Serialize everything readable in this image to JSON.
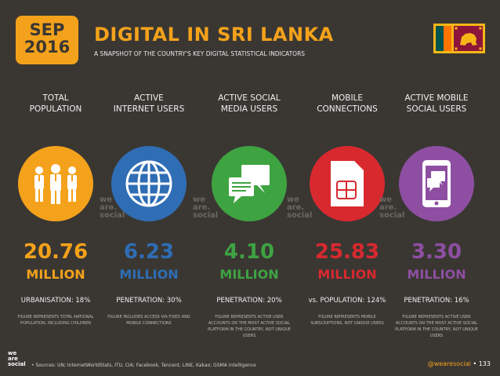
{
  "header": {
    "month": "SEP",
    "year": "2016",
    "title": "DIGITAL IN SRI LANKA",
    "subtitle": "A SNAPSHOT OF THE COUNTRY'S KEY DIGITAL STATISTICAL INDICATORS"
  },
  "watermark": {
    "line1": "we",
    "line2": "are.",
    "line3": "social"
  },
  "columns": [
    {
      "label1": "TOTAL",
      "label2": "POPULATION",
      "value": "20.76",
      "unit": "MILLION",
      "stat": "URBANISATION: 18%",
      "note": "FIGURE REPRESENTS TOTAL NATIONAL POPULATION, INCLUDING CHILDREN",
      "icon": "people-icon",
      "color": "#f4a21b"
    },
    {
      "label1": "ACTIVE",
      "label2": "INTERNET USERS",
      "value": "6.23",
      "unit": "MILLION",
      "stat": "PENETRATION: 30%",
      "note": "FIGURE INCLUDES ACCESS VIA FIXED AND MOBILE CONNECTIONS",
      "icon": "globe-icon",
      "color": "#2f6db5"
    },
    {
      "label1": "ACTIVE SOCIAL",
      "label2": "MEDIA USERS",
      "value": "4.10",
      "unit": "MILLION",
      "stat": "PENETRATION: 20%",
      "note": "FIGURE REPRESENTS ACTIVE USER ACCOUNTS ON THE MOST ACTIVE SOCIAL PLATFORM IN THE COUNTRY, NOT UNIQUE USERS",
      "icon": "chat-bubbles-icon",
      "color": "#3ea341"
    },
    {
      "label1": "MOBILE",
      "label2": "CONNECTIONS",
      "value": "25.83",
      "unit": "MILLION",
      "stat": "vs. POPULATION: 124%",
      "note": "FIGURE REPRESENTS MOBILE SUBSCRIPTIONS, NOT UNIQUE USERS",
      "icon": "sim-card-icon",
      "color": "#d8292f"
    },
    {
      "label1": "ACTIVE MOBILE",
      "label2": "SOCIAL USERS",
      "value": "3.30",
      "unit": "MILLION",
      "stat": "PENETRATION: 16%",
      "note": "FIGURE REPRESENTS ACTIVE USER ACCOUNTS ON THE MOST ACTIVE SOCIAL PLATFORM IN THE COUNTRY, NOT UNIQUE USERS",
      "icon": "mobile-chat-icon",
      "color": "#8e4fa2"
    }
  ],
  "footer": {
    "logo1": "we",
    "logo2": "are",
    "logo3": "social",
    "sources": "• Sources: UN; InternetWorldStats, ITU, CIA; Facebook, Tencent, LINE, Kakao; GSMA Intelligence",
    "handle": "@wearesocial",
    "sep": " • ",
    "page": "133"
  }
}
